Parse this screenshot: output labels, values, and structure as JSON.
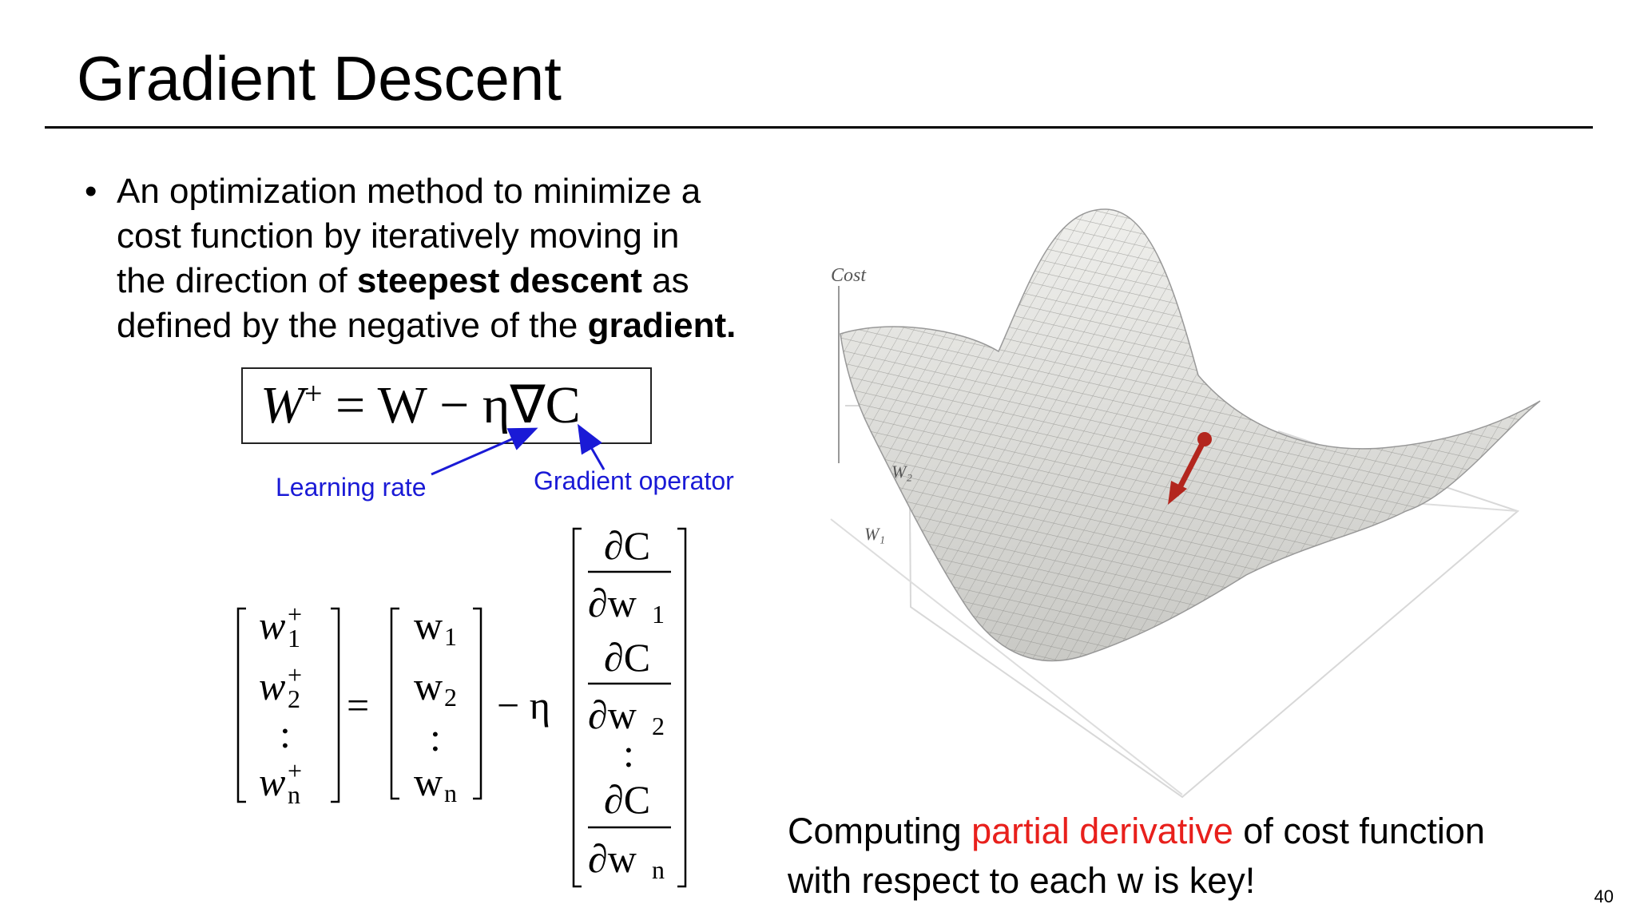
{
  "slide": {
    "title": "Gradient Descent",
    "page_number": "40"
  },
  "bullet": {
    "line1": "An optimization method to minimize a",
    "line2": "cost function by iteratively moving in",
    "line3_a": "the direction of ",
    "line3_bold": "steepest descent",
    "line3_b": " as",
    "line4_a": "defined by the negative of the ",
    "line4_bold": "gradient."
  },
  "formula": {
    "lhs": "W",
    "lhs_sup": "+",
    "rhs": " = W − η∇C"
  },
  "annotations": {
    "learning_rate": "Learning rate",
    "gradient_operator": "Gradient operator"
  },
  "matrix_equation": {
    "lhs": [
      "w",
      "w",
      ":",
      "w"
    ],
    "lhs_sub": [
      "1",
      "2",
      "",
      "n"
    ],
    "lhs_sup": "+",
    "rhs_w": [
      "w",
      "w",
      ":",
      "w"
    ],
    "rhs_sub": [
      "1",
      "2",
      "",
      "n"
    ],
    "equals": "=",
    "minus_eta": "− η",
    "partial_num": "∂C",
    "partial_den": "∂w",
    "den_sub": [
      "1",
      "2",
      "n"
    ],
    "ellipsis": ":"
  },
  "plot": {
    "cost_label": "Cost",
    "w2_label": "W₂",
    "w1_label": "W₁",
    "arrow_color": "#b3261e",
    "surface_color": "#e9e9e6"
  },
  "caption": {
    "part1": "Computing ",
    "highlight": "partial derivative",
    "part2": " of cost function",
    "line2": "with respect to each w is key!",
    "highlight_color": "#e8201c"
  }
}
